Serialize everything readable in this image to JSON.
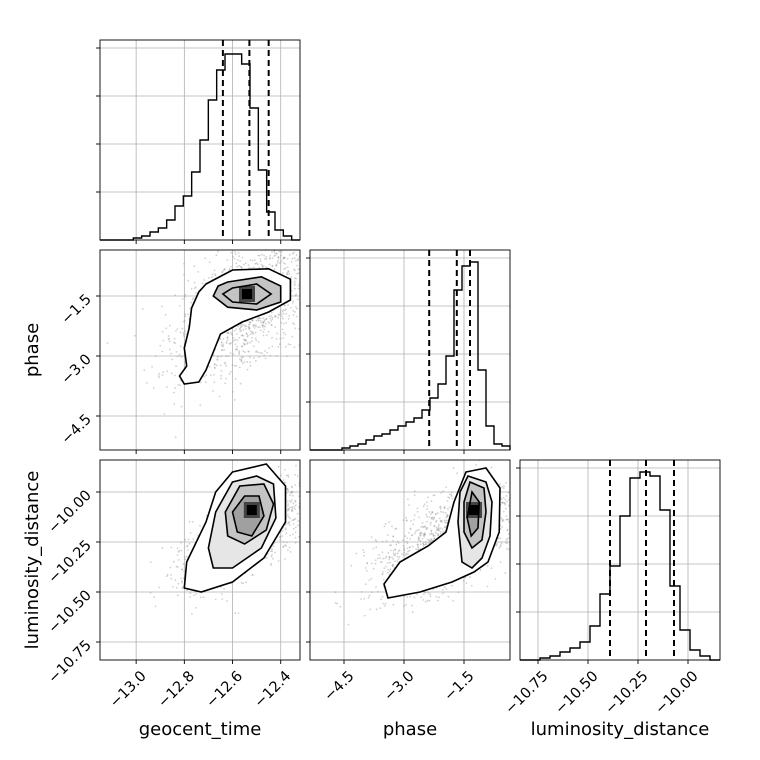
{
  "chart_data": {
    "type": "corner",
    "parameters": [
      "geocent_time",
      "phase",
      "luminosity_distance"
    ],
    "axis_labels": {
      "geocent_time": "geocent_time",
      "phase": "phase",
      "luminosity_distance": "luminosity_distance"
    },
    "ranges": {
      "geocent_time": [
        -13.15,
        -12.32
      ],
      "phase": [
        -5.35,
        -0.35
      ],
      "luminosity_distance": [
        -10.84,
        -9.84
      ]
    },
    "ticks": {
      "geocent_time": [
        -13.0,
        -12.8,
        -12.6,
        -12.4
      ],
      "phase": [
        -4.5,
        -3.0,
        -1.5
      ],
      "luminosity_distance": [
        -10.75,
        -10.5,
        -10.25,
        -10.0
      ]
    },
    "tick_labels": {
      "geocent_time": [
        "−13.0",
        "−12.8",
        "−12.6",
        "−12.4"
      ],
      "phase": [
        "−4.5",
        "−3.0",
        "−1.5"
      ],
      "luminosity_distance": [
        "−10.75",
        "−10.50",
        "−10.25",
        "−10.00"
      ]
    },
    "grid": true,
    "histograms": {
      "geocent_time": {
        "counts": [
          0,
          0,
          0,
          0,
          0.01,
          0.02,
          0.04,
          0.06,
          0.1,
          0.17,
          0.22,
          0.34,
          0.5,
          0.7,
          0.85,
          0.93,
          0.93,
          0.88,
          0.66,
          0.35,
          0.14,
          0.05,
          0.02,
          0
        ],
        "quantiles": [
          -12.64,
          -12.53,
          -12.45
        ]
      },
      "phase": {
        "counts": [
          0,
          0,
          0,
          0,
          0.01,
          0.02,
          0.03,
          0.05,
          0.07,
          0.08,
          0.1,
          0.12,
          0.14,
          0.16,
          0.2,
          0.26,
          0.33,
          0.47,
          0.8,
          0.92,
          0.94,
          0.4,
          0.12,
          0.03,
          0.02
        ],
        "quantiles": [
          -2.37,
          -1.68,
          -1.35
        ]
      },
      "luminosity_distance": {
        "counts": [
          0,
          0,
          0.01,
          0.02,
          0.04,
          0.06,
          0.09,
          0.17,
          0.33,
          0.47,
          0.72,
          0.91,
          0.94,
          0.92,
          0.75,
          0.37,
          0.15,
          0.05,
          0.02,
          0
        ],
        "quantiles": [
          -10.39,
          -10.21,
          -10.07
        ]
      }
    },
    "pairs": [
      {
        "x": "geocent_time",
        "y": "phase",
        "mean": [
          -12.56,
          -1.8
        ],
        "sd": [
          0.14,
          0.9
        ],
        "corr": 0.55,
        "contours": [
          [
            [
              -12.62,
              -1.15
            ],
            [
              -12.48,
              -1.02
            ],
            [
              -12.4,
              -1.25
            ],
            [
              -12.4,
              -1.65
            ],
            [
              -12.5,
              -1.85
            ],
            [
              -12.62,
              -1.78
            ],
            [
              -12.68,
              -1.5
            ],
            [
              -12.66,
              -1.25
            ]
          ],
          [
            [
              -12.6,
              -1.3
            ],
            [
              -12.5,
              -1.2
            ],
            [
              -12.44,
              -1.45
            ],
            [
              -12.5,
              -1.7
            ],
            [
              -12.6,
              -1.65
            ],
            [
              -12.64,
              -1.45
            ]
          ],
          [
            [
              -12.71,
              -1.2
            ],
            [
              -12.6,
              -0.85
            ],
            [
              -12.45,
              -0.82
            ],
            [
              -12.36,
              -1.08
            ],
            [
              -12.36,
              -1.6
            ],
            [
              -12.45,
              -1.9
            ],
            [
              -12.56,
              -2.15
            ],
            [
              -12.65,
              -2.45
            ],
            [
              -12.68,
              -2.9
            ],
            [
              -12.71,
              -3.35
            ],
            [
              -12.74,
              -3.65
            ],
            [
              -12.8,
              -3.7
            ],
            [
              -12.82,
              -3.5
            ],
            [
              -12.79,
              -3.25
            ],
            [
              -12.8,
              -2.8
            ],
            [
              -12.78,
              -2.3
            ],
            [
              -12.77,
              -1.8
            ],
            [
              -12.74,
              -1.4
            ]
          ]
        ],
        "peak": [
          -12.54,
          -1.45
        ]
      },
      {
        "x": "geocent_time",
        "y": "luminosity_distance",
        "mean": [
          -12.54,
          -10.2
        ],
        "sd": [
          0.13,
          0.13
        ],
        "corr": 0.7,
        "contours": [
          [
            [
              -12.55,
              -10.02
            ],
            [
              -12.49,
              -10.02
            ],
            [
              -12.47,
              -10.12
            ],
            [
              -12.52,
              -10.22
            ],
            [
              -12.58,
              -10.2
            ],
            [
              -12.6,
              -10.1
            ]
          ],
          [
            [
              -12.57,
              -9.97
            ],
            [
              -12.47,
              -9.96
            ],
            [
              -12.43,
              -10.06
            ],
            [
              -12.46,
              -10.19
            ],
            [
              -12.55,
              -10.26
            ],
            [
              -12.62,
              -10.22
            ],
            [
              -12.63,
              -10.1
            ]
          ],
          [
            [
              -12.6,
              -9.95
            ],
            [
              -12.5,
              -9.92
            ],
            [
              -12.43,
              -9.96
            ],
            [
              -12.42,
              -10.13
            ],
            [
              -12.48,
              -10.28
            ],
            [
              -12.6,
              -10.38
            ],
            [
              -12.68,
              -10.38
            ],
            [
              -12.7,
              -10.28
            ],
            [
              -12.67,
              -10.1
            ]
          ],
          [
            [
              -12.6,
              -9.9
            ],
            [
              -12.46,
              -9.86
            ],
            [
              -12.38,
              -9.97
            ],
            [
              -12.38,
              -10.15
            ],
            [
              -12.47,
              -10.33
            ],
            [
              -12.6,
              -10.45
            ],
            [
              -12.73,
              -10.5
            ],
            [
              -12.8,
              -10.48
            ],
            [
              -12.79,
              -10.35
            ],
            [
              -12.71,
              -10.15
            ],
            [
              -12.67,
              -10.0
            ]
          ]
        ],
        "peak": [
          -12.52,
          -10.09
        ]
      },
      {
        "x": "phase",
        "y": "luminosity_distance",
        "mean": [
          -1.9,
          -10.25
        ],
        "sd": [
          0.9,
          0.14
        ],
        "corr": 0.6,
        "contours": [
          [
            [
              -1.3,
              -10.0
            ],
            [
              -1.12,
              -10.05
            ],
            [
              -1.15,
              -10.18
            ],
            [
              -1.32,
              -10.22
            ],
            [
              -1.42,
              -10.13
            ]
          ],
          [
            [
              -1.35,
              -9.95
            ],
            [
              -1.0,
              -9.98
            ],
            [
              -0.95,
              -10.1
            ],
            [
              -1.05,
              -10.24
            ],
            [
              -1.3,
              -10.28
            ],
            [
              -1.5,
              -10.2
            ],
            [
              -1.5,
              -10.05
            ]
          ],
          [
            [
              -1.4,
              -9.92
            ],
            [
              -0.95,
              -9.95
            ],
            [
              -0.8,
              -10.05
            ],
            [
              -0.85,
              -10.22
            ],
            [
              -1.05,
              -10.33
            ],
            [
              -1.3,
              -10.38
            ],
            [
              -1.55,
              -10.35
            ],
            [
              -1.65,
              -10.15
            ],
            [
              -1.6,
              -10.0
            ]
          ],
          [
            [
              -1.45,
              -9.9
            ],
            [
              -0.95,
              -9.88
            ],
            [
              -0.6,
              -9.98
            ],
            [
              -0.62,
              -10.2
            ],
            [
              -0.9,
              -10.35
            ],
            [
              -1.25,
              -10.4
            ],
            [
              -1.8,
              -10.45
            ],
            [
              -2.6,
              -10.5
            ],
            [
              -3.4,
              -10.53
            ],
            [
              -3.5,
              -10.46
            ],
            [
              -3.1,
              -10.35
            ],
            [
              -2.4,
              -10.27
            ],
            [
              -1.95,
              -10.2
            ],
            [
              -1.75,
              -10.05
            ]
          ]
        ],
        "peak": [
          -1.25,
          -10.09
        ]
      }
    ]
  }
}
